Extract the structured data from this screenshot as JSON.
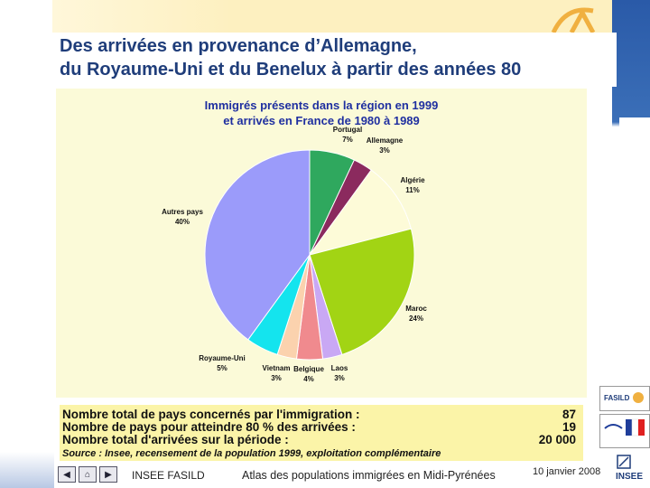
{
  "slide": {
    "title_line1": "Des arrivées en provenance d’Allemagne,",
    "title_line2": "du Royaume-Uni et du Benelux à partir des années 80"
  },
  "chart_data": {
    "type": "pie",
    "title_line1": "Immigrés présents dans la région en 1999",
    "title_line2": "et arrivés en France de 1980 à 1989",
    "series": [
      {
        "name": "Portugal",
        "label": "7%",
        "value": 7,
        "color": "#2fa85e"
      },
      {
        "name": "Allemagne",
        "label": "3%",
        "value": 3,
        "color": "#8b2a5e"
      },
      {
        "name": "Algérie",
        "label": "11%",
        "value": 11,
        "color": "#fdfbd8"
      },
      {
        "name": "Maroc",
        "label": "24%",
        "value": 24,
        "color": "#a2d414"
      },
      {
        "name": "Laos",
        "label": "3%",
        "value": 3,
        "color": "#c9a8f4"
      },
      {
        "name": "Belgique",
        "label": "4%",
        "value": 4,
        "color": "#f08a8e"
      },
      {
        "name": "Vietnam",
        "label": "3%",
        "value": 3,
        "color": "#fbd2ae"
      },
      {
        "name": "Royaume-Uni",
        "label": "5%",
        "value": 5,
        "color": "#14e4ee"
      },
      {
        "name": "Autres pays",
        "label": "40%",
        "value": 40,
        "color": "#9b9bfa"
      }
    ]
  },
  "stats": [
    {
      "label": "Nombre total de pays concernés par l'immigration :",
      "value": "87"
    },
    {
      "label": "Nombre de pays pour atteindre 80 % des arrivées :",
      "value": "19"
    },
    {
      "label": "Nombre total d'arrivées sur la période :",
      "value": "20 000"
    }
  ],
  "source": "Source : Insee, recensement de la population 1999, exploitation complémentaire",
  "footer": {
    "left": "INSEE FASILD",
    "center": "Atlas des populations immigrées en Midi-Pyrénées",
    "date": "10 janvier 2008"
  },
  "logos": {
    "fasild": "FASILD",
    "insee": "INSEE"
  },
  "icons": {
    "prev": "arrow-left-icon",
    "home": "home-icon",
    "next": "arrow-right-icon"
  }
}
